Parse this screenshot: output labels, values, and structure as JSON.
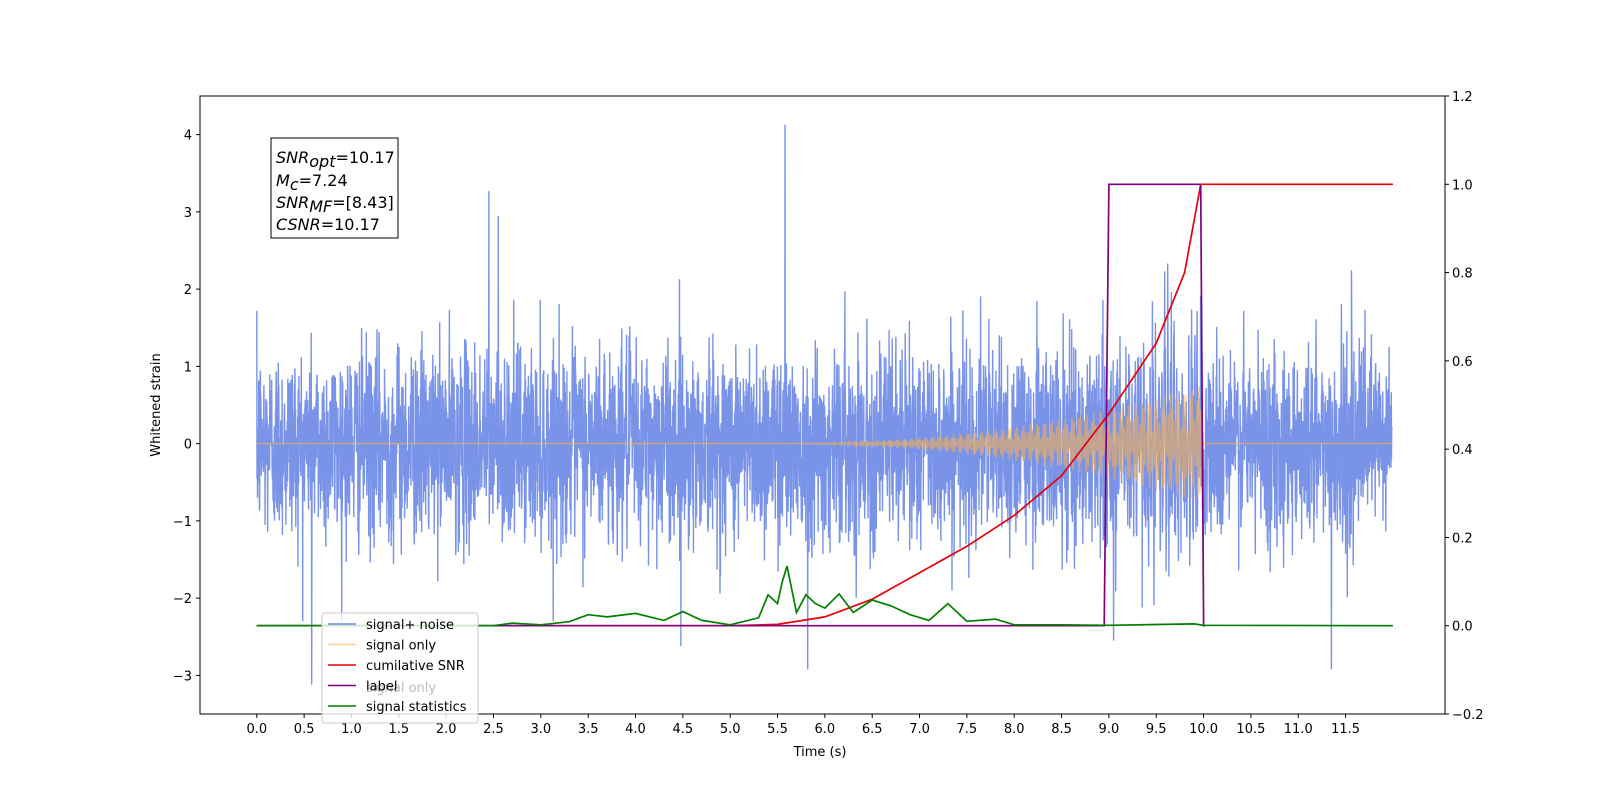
{
  "chart_data": {
    "type": "line",
    "xlabel": "Time (s)",
    "ylabel": "Whitened strain",
    "xlim": [
      -0.6,
      12.55
    ],
    "ylim": [
      -3.5,
      4.5
    ],
    "y2lim": [
      -0.2,
      1.2
    ],
    "xticks": [
      "0.0",
      "0.5",
      "1.0",
      "1.5",
      "2.0",
      "2.5",
      "3.0",
      "3.5",
      "4.0",
      "4.5",
      "5.0",
      "5.5",
      "6.0",
      "6.5",
      "7.0",
      "7.5",
      "8.0",
      "8.5",
      "9.0",
      "9.5",
      "10.0",
      "10.5",
      "11.0",
      "11.5"
    ],
    "yticks": [
      "4",
      "3",
      "2",
      "1",
      "0",
      "−1",
      "−2",
      "−3"
    ],
    "y2ticks": [
      "1.2",
      "1.0",
      "0.8",
      "0.6",
      "0.4",
      "0.2",
      "0.0",
      "−0.2"
    ],
    "legend_position": "lower-left",
    "grid": false,
    "series": [
      {
        "name": "signal+ noise",
        "color": "#6a87e6",
        "axis": "left",
        "x_range": [
          0,
          11.99
        ],
        "noise_std": 0.62,
        "outliers": [
          [
            5.58,
            4.13
          ],
          [
            2.45,
            3.27
          ],
          [
            2.55,
            2.95
          ],
          [
            0.58,
            -3.12
          ],
          [
            11.35,
            -2.92
          ],
          [
            5.82,
            -2.92
          ],
          [
            4.48,
            -2.62
          ],
          [
            9.05,
            -2.55
          ]
        ]
      },
      {
        "name": "signal only",
        "color": "#ffb347",
        "axis": "left",
        "chirp": {
          "start": 5.4,
          "end": 9.97,
          "peak_amplitude": 0.75
        }
      },
      {
        "name": "cumilative SNR",
        "color": "#e8000b",
        "axis": "right",
        "x": [
          0,
          5.0,
          5.5,
          6.0,
          6.5,
          7.0,
          7.5,
          8.0,
          8.5,
          9.0,
          9.5,
          9.8,
          9.97,
          9.98,
          12.0
        ],
        "y": [
          0,
          0,
          0.003,
          0.02,
          0.06,
          0.12,
          0.18,
          0.25,
          0.34,
          0.48,
          0.64,
          0.8,
          1.0,
          1.0,
          1.0
        ]
      },
      {
        "name": "label",
        "color": "#800080",
        "axis": "right",
        "x": [
          0,
          8.95,
          9.0,
          9.97,
          10.0,
          10.02
        ],
        "y": [
          0,
          0,
          1,
          1,
          0,
          0
        ]
      },
      {
        "name": "signal statistics",
        "color": "#008000",
        "axis": "right",
        "x": [
          0,
          2.5,
          2.7,
          3.0,
          3.3,
          3.5,
          3.7,
          4.0,
          4.3,
          4.5,
          4.7,
          5.0,
          5.3,
          5.4,
          5.5,
          5.55,
          5.6,
          5.7,
          5.8,
          5.9,
          6.0,
          6.15,
          6.3,
          6.5,
          6.7,
          6.9,
          7.1,
          7.3,
          7.5,
          7.8,
          8.0,
          8.5,
          9.0,
          9.9,
          10.0,
          12.0
        ],
        "y": [
          0,
          0,
          0.006,
          0.002,
          0.009,
          0.025,
          0.02,
          0.028,
          0.012,
          0.032,
          0.012,
          0.002,
          0.018,
          0.07,
          0.05,
          0.1,
          0.135,
          0.03,
          0.07,
          0.05,
          0.04,
          0.072,
          0.03,
          0.058,
          0.045,
          0.025,
          0.012,
          0.05,
          0.01,
          0.015,
          0.002,
          0.002,
          0.001,
          0.004,
          0.001,
          0
        ]
      }
    ],
    "legend": [
      "signal+ noise",
      "signal only",
      "cumilative SNR",
      "label",
      "signal statistics"
    ],
    "legend_overlap_text": "signal only",
    "annotation": {
      "snr_opt_label": "SNR",
      "snr_opt_sub": "opt",
      "snr_opt_value": "=10.17",
      "mc_label": "M",
      "mc_sub": "c",
      "mc_value": "=7.24",
      "snr_mf_label": "SNR",
      "snr_mf_sub": "MF",
      "snr_mf_value": "=[8.43]",
      "csnr_label": "CSNR",
      "csnr_value": "=10.17"
    }
  }
}
